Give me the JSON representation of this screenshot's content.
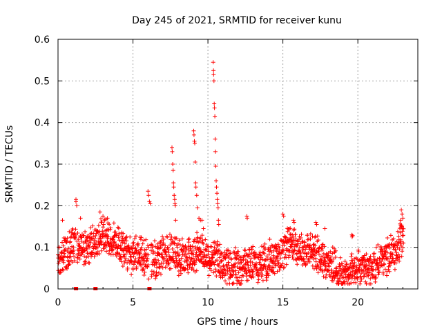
{
  "chart_data": {
    "type": "scatter",
    "title": "Day 245 of 2021, SRMTID for receiver kunu",
    "xlabel": "GPS time / hours",
    "ylabel": "SRMTID / TECUs",
    "xlim": [
      0,
      24
    ],
    "ylim": [
      0,
      0.6
    ],
    "xticks": [
      0,
      5,
      10,
      15,
      20
    ],
    "xtick_labels": [
      "0",
      "5",
      "10",
      "15",
      "20"
    ],
    "yticks": [
      0,
      0.1,
      0.2,
      0.3,
      0.4,
      0.5,
      0.6
    ],
    "ytick_labels": [
      "0",
      "0.1",
      "0.2",
      "0.3",
      "0.4",
      "0.5",
      "0.6"
    ],
    "grid": true,
    "marker": "+",
    "color": "#ff0000",
    "baseline_trend": [
      [
        0.0,
        0.07
      ],
      [
        0.5,
        0.08
      ],
      [
        1.0,
        0.11
      ],
      [
        1.5,
        0.1
      ],
      [
        2.0,
        0.1
      ],
      [
        2.5,
        0.11
      ],
      [
        3.0,
        0.14
      ],
      [
        3.5,
        0.12
      ],
      [
        4.0,
        0.11
      ],
      [
        4.5,
        0.09
      ],
      [
        5.0,
        0.08
      ],
      [
        5.5,
        0.08
      ],
      [
        6.0,
        0.07
      ],
      [
        6.5,
        0.07
      ],
      [
        7.0,
        0.08
      ],
      [
        7.5,
        0.09
      ],
      [
        8.0,
        0.08
      ],
      [
        8.5,
        0.08
      ],
      [
        9.0,
        0.08
      ],
      [
        9.5,
        0.1
      ],
      [
        10.0,
        0.07
      ],
      [
        10.5,
        0.07
      ],
      [
        11.0,
        0.06
      ],
      [
        11.5,
        0.05
      ],
      [
        12.0,
        0.05
      ],
      [
        12.5,
        0.06
      ],
      [
        13.0,
        0.06
      ],
      [
        13.5,
        0.06
      ],
      [
        14.0,
        0.07
      ],
      [
        14.5,
        0.08
      ],
      [
        15.0,
        0.09
      ],
      [
        15.5,
        0.12
      ],
      [
        16.0,
        0.1
      ],
      [
        16.5,
        0.09
      ],
      [
        17.0,
        0.09
      ],
      [
        17.5,
        0.08
      ],
      [
        18.0,
        0.06
      ],
      [
        18.5,
        0.05
      ],
      [
        19.0,
        0.03
      ],
      [
        19.5,
        0.04
      ],
      [
        20.0,
        0.05
      ],
      [
        20.5,
        0.04
      ],
      [
        21.0,
        0.05
      ],
      [
        21.5,
        0.07
      ],
      [
        22.0,
        0.08
      ],
      [
        22.5,
        0.09
      ],
      [
        23.0,
        0.12
      ]
    ],
    "highlighted_points": [
      [
        0.3,
        0.165
      ],
      [
        1.2,
        0.215
      ],
      [
        1.2,
        0.21
      ],
      [
        1.25,
        0.2
      ],
      [
        1.5,
        0.17
      ],
      [
        2.8,
        0.185
      ],
      [
        3.0,
        0.175
      ],
      [
        3.3,
        0.17
      ],
      [
        6.0,
        0.235
      ],
      [
        6.05,
        0.225
      ],
      [
        6.1,
        0.21
      ],
      [
        6.15,
        0.205
      ],
      [
        7.6,
        0.34
      ],
      [
        7.62,
        0.33
      ],
      [
        7.65,
        0.3
      ],
      [
        7.68,
        0.285
      ],
      [
        7.7,
        0.255
      ],
      [
        7.72,
        0.245
      ],
      [
        7.75,
        0.225
      ],
      [
        7.78,
        0.215
      ],
      [
        7.8,
        0.205
      ],
      [
        7.82,
        0.2
      ],
      [
        7.85,
        0.165
      ],
      [
        9.05,
        0.38
      ],
      [
        9.07,
        0.37
      ],
      [
        9.1,
        0.355
      ],
      [
        9.12,
        0.35
      ],
      [
        9.15,
        0.305
      ],
      [
        9.18,
        0.255
      ],
      [
        9.2,
        0.245
      ],
      [
        9.25,
        0.225
      ],
      [
        9.3,
        0.195
      ],
      [
        9.4,
        0.17
      ],
      [
        9.5,
        0.165
      ],
      [
        9.6,
        0.165
      ],
      [
        9.7,
        0.145
      ],
      [
        10.35,
        0.545
      ],
      [
        10.37,
        0.525
      ],
      [
        10.38,
        0.515
      ],
      [
        10.4,
        0.5
      ],
      [
        10.42,
        0.445
      ],
      [
        10.44,
        0.435
      ],
      [
        10.46,
        0.415
      ],
      [
        10.48,
        0.36
      ],
      [
        10.5,
        0.33
      ],
      [
        10.52,
        0.295
      ],
      [
        10.55,
        0.26
      ],
      [
        10.57,
        0.245
      ],
      [
        10.6,
        0.23
      ],
      [
        10.62,
        0.215
      ],
      [
        10.65,
        0.205
      ],
      [
        10.68,
        0.195
      ],
      [
        10.7,
        0.165
      ],
      [
        10.72,
        0.155
      ],
      [
        12.6,
        0.175
      ],
      [
        12.62,
        0.17
      ],
      [
        15.0,
        0.18
      ],
      [
        15.05,
        0.175
      ],
      [
        15.7,
        0.165
      ],
      [
        15.75,
        0.16
      ],
      [
        17.2,
        0.16
      ],
      [
        17.25,
        0.155
      ],
      [
        17.8,
        0.145
      ],
      [
        19.6,
        0.13
      ],
      [
        19.62,
        0.125
      ],
      [
        19.65,
        0.128
      ],
      [
        22.9,
        0.19
      ],
      [
        22.95,
        0.18
      ],
      [
        23.0,
        0.17
      ],
      [
        22.85,
        0.165
      ]
    ],
    "gap_markers": [
      1.2,
      2.5,
      6.1
    ]
  }
}
